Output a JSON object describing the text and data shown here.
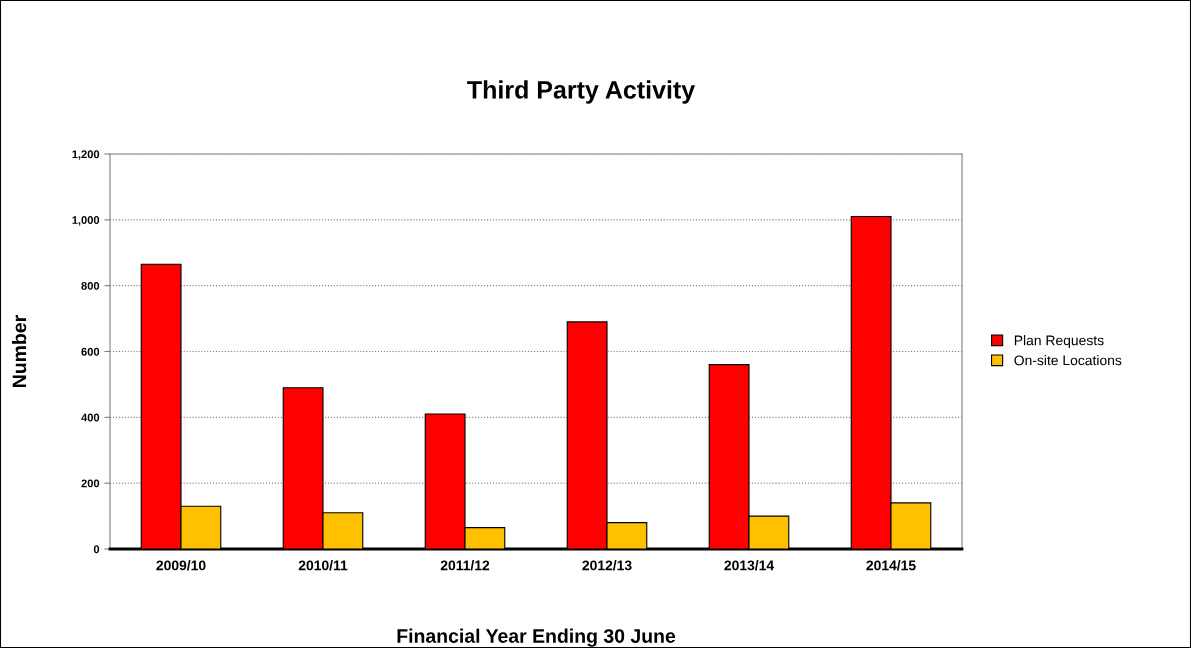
{
  "chart_data": {
    "type": "bar",
    "title": "Third Party Activity",
    "xlabel": "Financial Year Ending 30 June",
    "ylabel": "Number",
    "categories": [
      "2009/10",
      "2010/11",
      "2011/12",
      "2012/13",
      "2013/14",
      "2014/15"
    ],
    "series": [
      {
        "name": "Plan Requests",
        "color": "#ff0000",
        "values": [
          865,
          490,
          410,
          690,
          560,
          1010
        ]
      },
      {
        "name": "On-site Locations",
        "color": "#ffc000",
        "values": [
          130,
          110,
          65,
          80,
          100,
          140
        ]
      }
    ],
    "ylim": [
      0,
      1200
    ],
    "yticks": [
      0,
      200,
      400,
      600,
      800,
      {
        "value": 1000,
        "label": "1,000"
      },
      {
        "value": 1200,
        "label": "1,200"
      }
    ],
    "grid": "y",
    "legend": "right"
  }
}
